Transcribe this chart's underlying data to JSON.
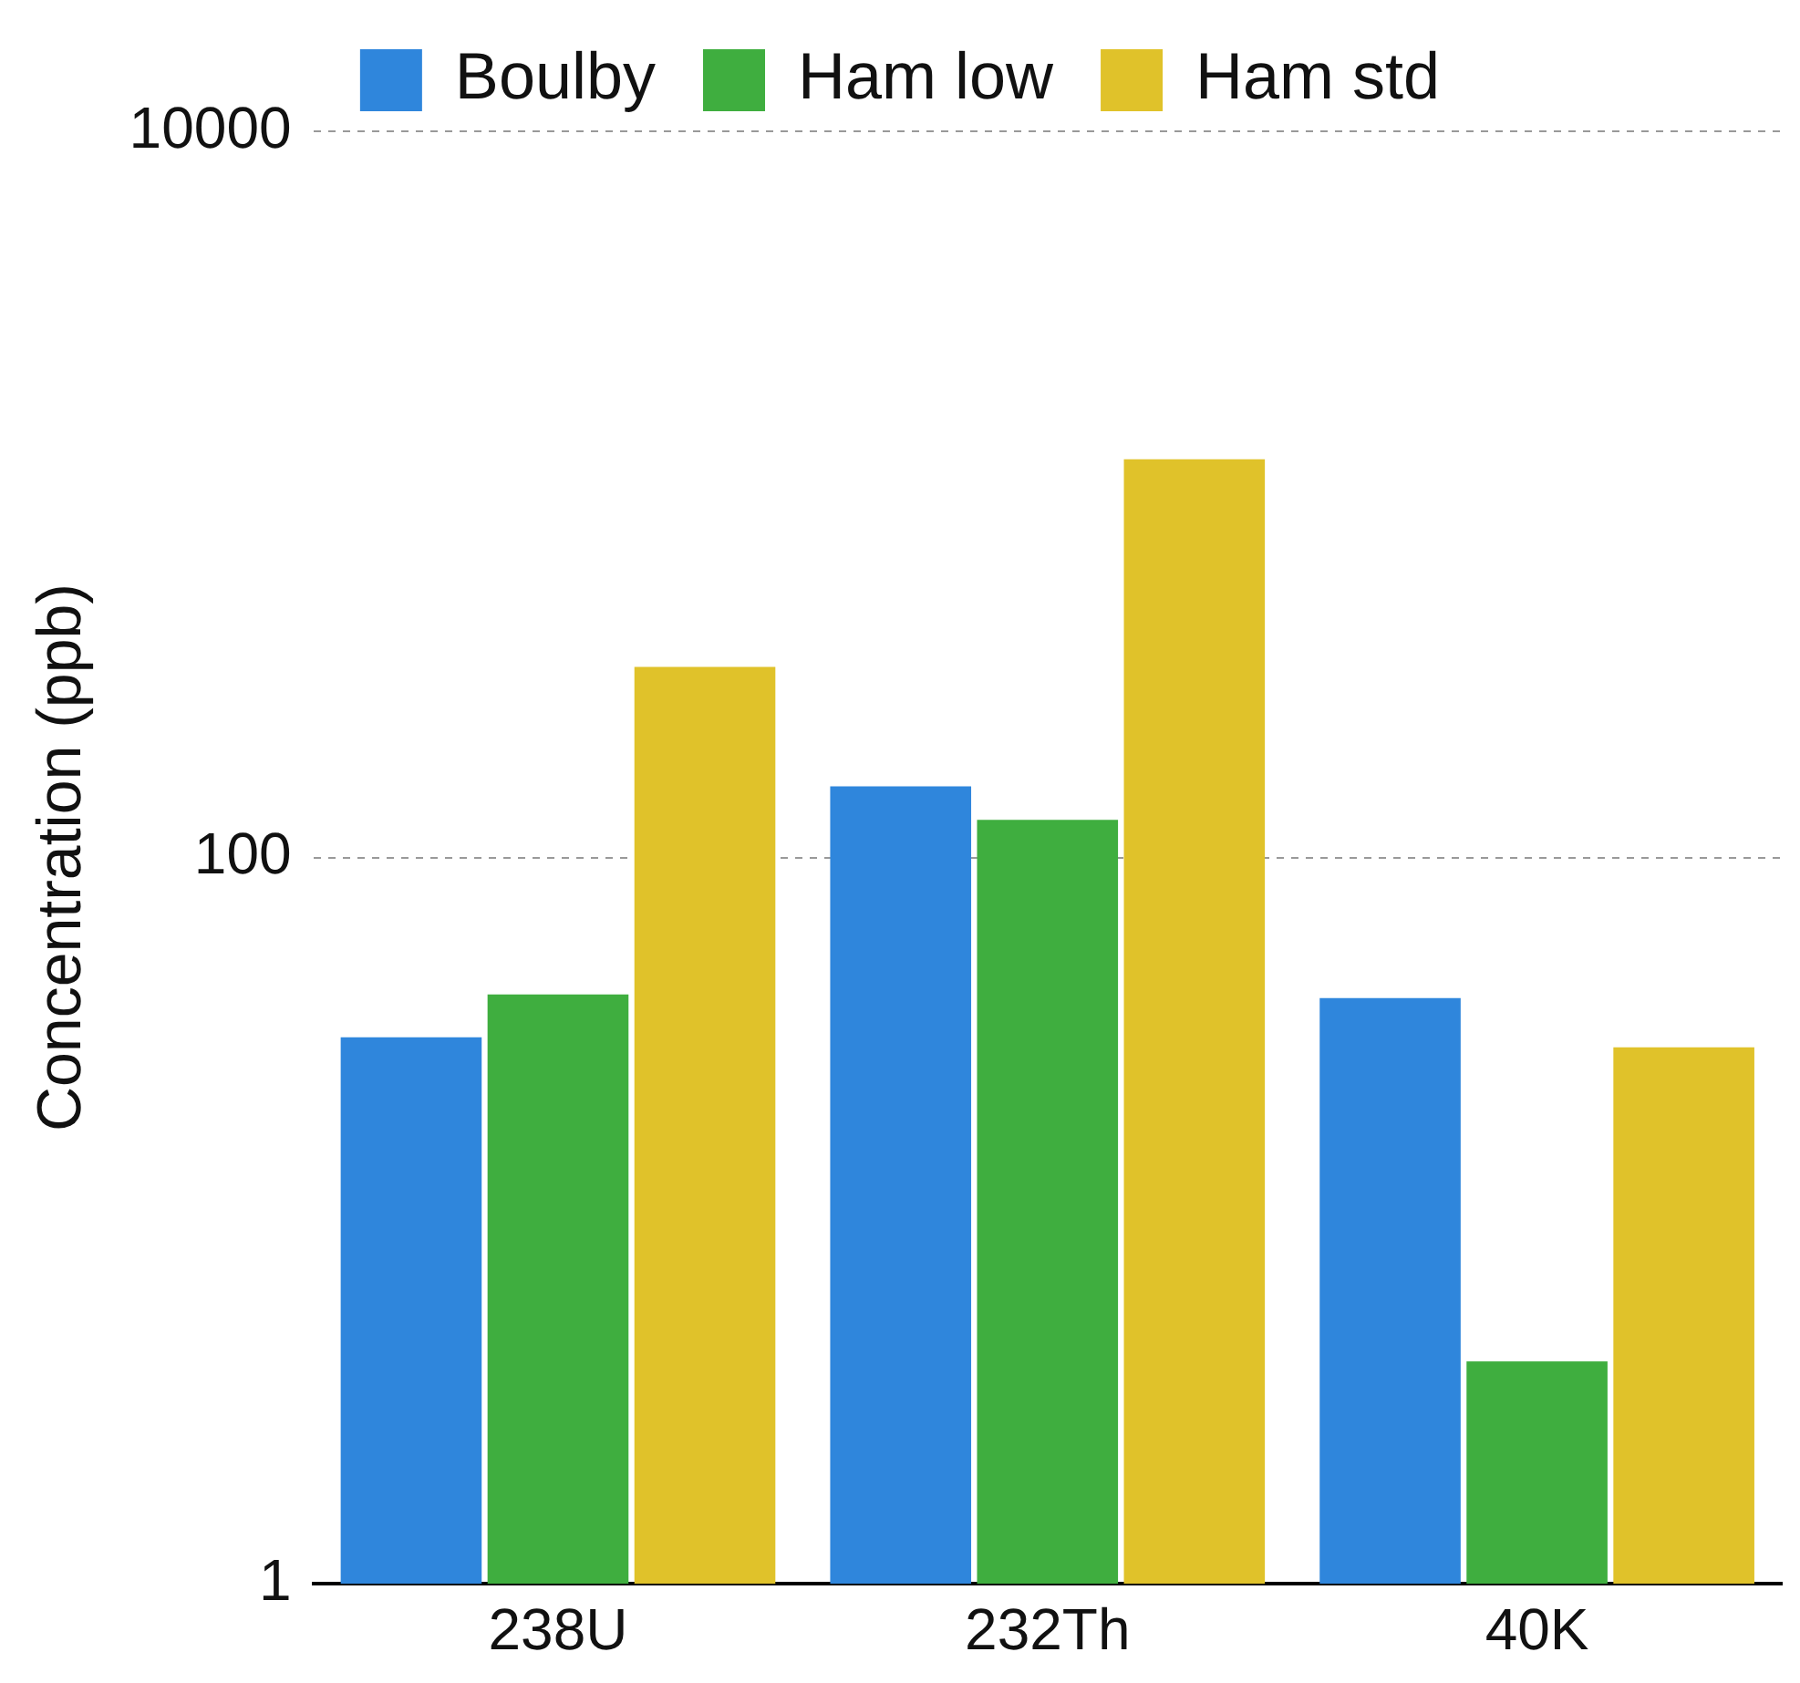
{
  "chart_data": {
    "type": "bar",
    "ylabel": "Concentration (ppb)",
    "categories": [
      "238U",
      "232Th",
      "40K"
    ],
    "series": [
      {
        "name": "Boulby",
        "color": "#2f86dc",
        "values": [
          32,
          157,
          41
        ]
      },
      {
        "name": "Ham low",
        "color": "#3fae3f",
        "values": [
          42,
          127,
          4.1
        ]
      },
      {
        "name": "Ham std",
        "color": "#e0c22a",
        "values": [
          335,
          1250,
          30
        ]
      }
    ],
    "log": "y",
    "ylim": [
      1,
      10000
    ],
    "yticks": [
      1,
      100,
      10000
    ],
    "grid": "y",
    "legend": "top"
  }
}
